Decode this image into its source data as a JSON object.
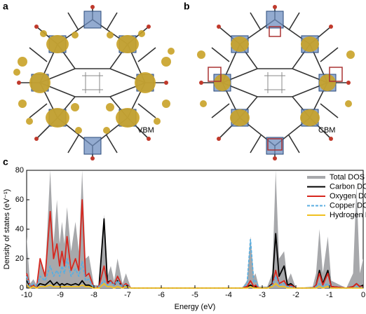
{
  "panel_labels": [
    "a",
    "b",
    "c"
  ],
  "structure_labels": [
    "VBM",
    "CBM"
  ],
  "chart_data": {
    "type": "line",
    "xlabel": "Energy (eV)",
    "ylabel": "Density of states (eV⁻¹)",
    "x": [
      -10,
      -9.9,
      -9.8,
      -9.7,
      -9.6,
      -9.45,
      -9.3,
      -9.2,
      -9.1,
      -9.02,
      -8.95,
      -8.88,
      -8.8,
      -8.68,
      -8.55,
      -8.45,
      -8.35,
      -8.25,
      -8.15,
      -8.0,
      -7.85,
      -7.7,
      -7.6,
      -7.5,
      -7.4,
      -7.3,
      -7.15,
      -7.05,
      -6.9,
      -3.6,
      -3.45,
      -3.35,
      -3.25,
      -3.2,
      -3.1,
      -2.85,
      -2.7,
      -2.6,
      -2.5,
      -2.35,
      -2.25,
      -2.15,
      -2.0,
      -1.5,
      -1.4,
      -1.3,
      -1.2,
      -1.05,
      -0.95,
      -0.5,
      -0.3,
      -0.2,
      -0.1,
      0
    ],
    "series": [
      {
        "name": "Total DOS",
        "color": "#a7a8ab",
        "area": true,
        "values": [
          35,
          3,
          6,
          2,
          18,
          10,
          80,
          30,
          60,
          30,
          45,
          30,
          55,
          25,
          45,
          25,
          80,
          20,
          22,
          2,
          2,
          50,
          8,
          15,
          5,
          20,
          3,
          10,
          0,
          0,
          5,
          35,
          8,
          10,
          1,
          1,
          10,
          80,
          20,
          25,
          5,
          10,
          0,
          1,
          10,
          40,
          10,
          35,
          5,
          0,
          10,
          70,
          10,
          20
        ]
      },
      {
        "name": "Carbon DOS",
        "color": "#000000",
        "values": [
          5,
          1,
          2,
          1,
          3,
          2,
          5,
          2,
          4,
          2,
          3,
          2,
          3,
          2,
          3,
          2,
          5,
          2,
          2,
          0,
          1,
          47,
          4,
          5,
          2,
          5,
          1,
          2,
          0,
          0,
          1,
          2,
          1,
          1,
          0,
          0,
          3,
          37,
          8,
          15,
          2,
          3,
          0,
          0,
          2,
          12,
          3,
          12,
          1,
          0,
          1,
          3,
          1,
          2
        ]
      },
      {
        "name": "Oxygen DOS",
        "color": "#d7261e",
        "values": [
          10,
          1,
          2,
          1,
          20,
          8,
          52,
          20,
          30,
          15,
          25,
          15,
          35,
          12,
          20,
          12,
          60,
          8,
          10,
          0,
          1,
          15,
          3,
          5,
          2,
          8,
          1,
          3,
          0,
          0,
          1,
          5,
          1,
          2,
          0,
          0,
          2,
          12,
          3,
          5,
          1,
          2,
          0,
          0,
          2,
          10,
          2,
          10,
          1,
          0,
          1,
          3,
          1,
          1
        ]
      },
      {
        "name": "Copper DOS",
        "color": "#5aaee0",
        "linestyle": "dashed",
        "values": [
          8,
          1,
          3,
          1,
          8,
          5,
          15,
          8,
          12,
          8,
          15,
          10,
          20,
          8,
          13,
          8,
          18,
          5,
          6,
          0,
          1,
          5,
          2,
          4,
          2,
          5,
          1,
          2,
          0,
          0,
          3,
          33,
          4,
          5,
          0,
          0,
          2,
          8,
          2,
          3,
          1,
          1,
          0,
          0,
          1,
          3,
          1,
          3,
          0,
          0,
          0,
          1,
          0,
          1
        ]
      },
      {
        "name": "Hydrogen DOS",
        "color": "#f0c020",
        "values": [
          2,
          0,
          1,
          0,
          1,
          1,
          2,
          1,
          1,
          1,
          1,
          1,
          1,
          1,
          1,
          1,
          2,
          1,
          1,
          0,
          0,
          3,
          1,
          1,
          0,
          1,
          0,
          1,
          0,
          0,
          0,
          1,
          0,
          0,
          0,
          0,
          1,
          3,
          1,
          1,
          0,
          0,
          0,
          0,
          0,
          1,
          0,
          1,
          0,
          0,
          0,
          0,
          0,
          0
        ]
      }
    ],
    "xlim": [
      -10,
      0
    ],
    "ylim": [
      0,
      80
    ],
    "xticks": [
      -10,
      -9,
      -8,
      -7,
      -6,
      -5,
      -4,
      -3,
      -2,
      -1,
      0
    ],
    "yticks": [
      0,
      20,
      40,
      60,
      80
    ],
    "legend": "upper right"
  }
}
